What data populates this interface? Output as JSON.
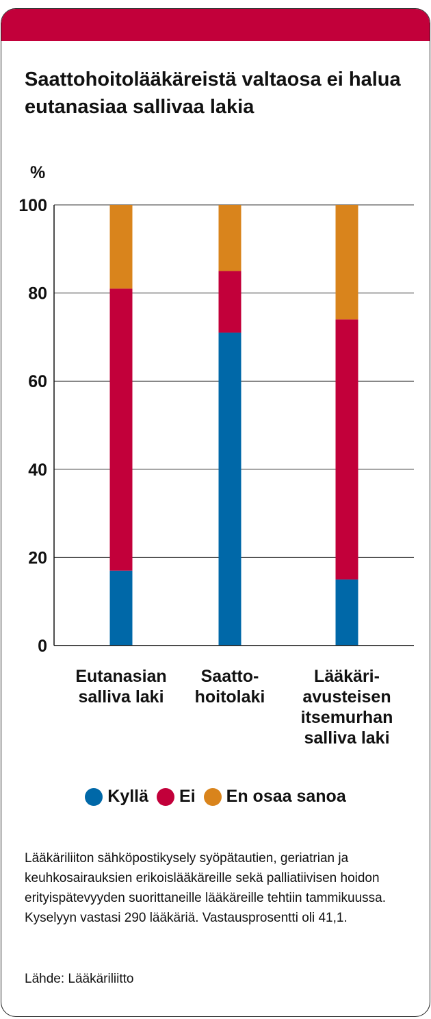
{
  "title": "Saattohoitolääkäreistä valtaosa ei halua eutanasiaa sallivaa lakia",
  "chart_data": {
    "type": "bar",
    "stacked": true,
    "title": "Saattohoitolääkäreistä valtaosa ei halua eutanasiaa sallivaa lakia",
    "ylabel": "%",
    "ylim": [
      0,
      100
    ],
    "yticks": [
      0,
      20,
      40,
      60,
      80,
      100
    ],
    "grid": true,
    "categories": [
      [
        "Eutanasian",
        "salliva laki"
      ],
      [
        "Saatto-",
        "hoitolaki"
      ],
      [
        "Lääkäri-",
        "avusteisen",
        "itsemurhan",
        "salliva laki"
      ]
    ],
    "series": [
      {
        "name": "Kyllä",
        "color": "#0068a8",
        "values": [
          17,
          71,
          15
        ]
      },
      {
        "name": "Ei",
        "color": "#c2003a",
        "values": [
          64,
          14,
          59
        ]
      },
      {
        "name": "En osaa sanoa",
        "color": "#d9841c",
        "values": [
          19,
          15,
          26
        ]
      }
    ],
    "legend_position": "bottom"
  },
  "note": "Lääkäriliiton sähköpostikysely syöpätautien, geriatrian ja keuhkosairauksien erikoislääkäreille sekä palliatiivisen hoidon erityispätevyyden suorittaneille lääkäreille tehtiin tammikuussa. Kyselyyn vastasi 290 lääkäriä. Vastausprosentti oli 41,1.",
  "source": "Lähde: Lääkäriliitto"
}
